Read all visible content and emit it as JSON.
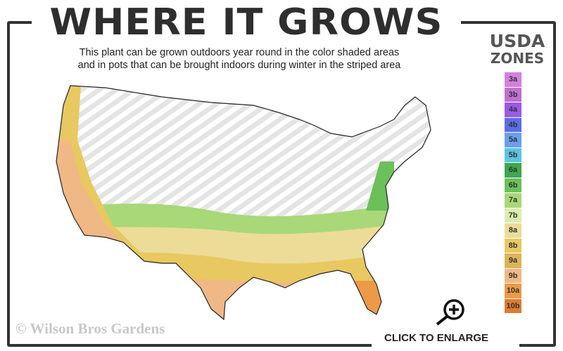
{
  "title": "WHERE IT GROWS",
  "subtitle_line1": "This plant can be grown outdoors year round in the color shaded areas",
  "subtitle_line2": "and in pots that can be brought indoors during winter in the striped area",
  "legend": {
    "title_line1": "USDA",
    "title_line2": "ZONES",
    "zones": [
      {
        "label": "3a",
        "color": "#d580e0"
      },
      {
        "label": "3b",
        "color": "#c070d0"
      },
      {
        "label": "4a",
        "color": "#9a5ae8"
      },
      {
        "label": "4b",
        "color": "#5a6ee8"
      },
      {
        "label": "5a",
        "color": "#6a9ef0"
      },
      {
        "label": "5b",
        "color": "#5cc4e0"
      },
      {
        "label": "6a",
        "color": "#3ea84e"
      },
      {
        "label": "6b",
        "color": "#6cc05a"
      },
      {
        "label": "7a",
        "color": "#a8d878"
      },
      {
        "label": "7b",
        "color": "#dcecb0"
      },
      {
        "label": "8a",
        "color": "#ecdc98"
      },
      {
        "label": "8b",
        "color": "#e8c860"
      },
      {
        "label": "9a",
        "color": "#dcb458"
      },
      {
        "label": "9b",
        "color": "#f0b884"
      },
      {
        "label": "10a",
        "color": "#ec9a48"
      },
      {
        "label": "10b",
        "color": "#e07c30"
      }
    ]
  },
  "copyright": "© Wilson Bros Gardens",
  "enlarge_label": "CLICK TO ENLARGE",
  "icons": {
    "zoom": "magnifier-plus-icon"
  }
}
